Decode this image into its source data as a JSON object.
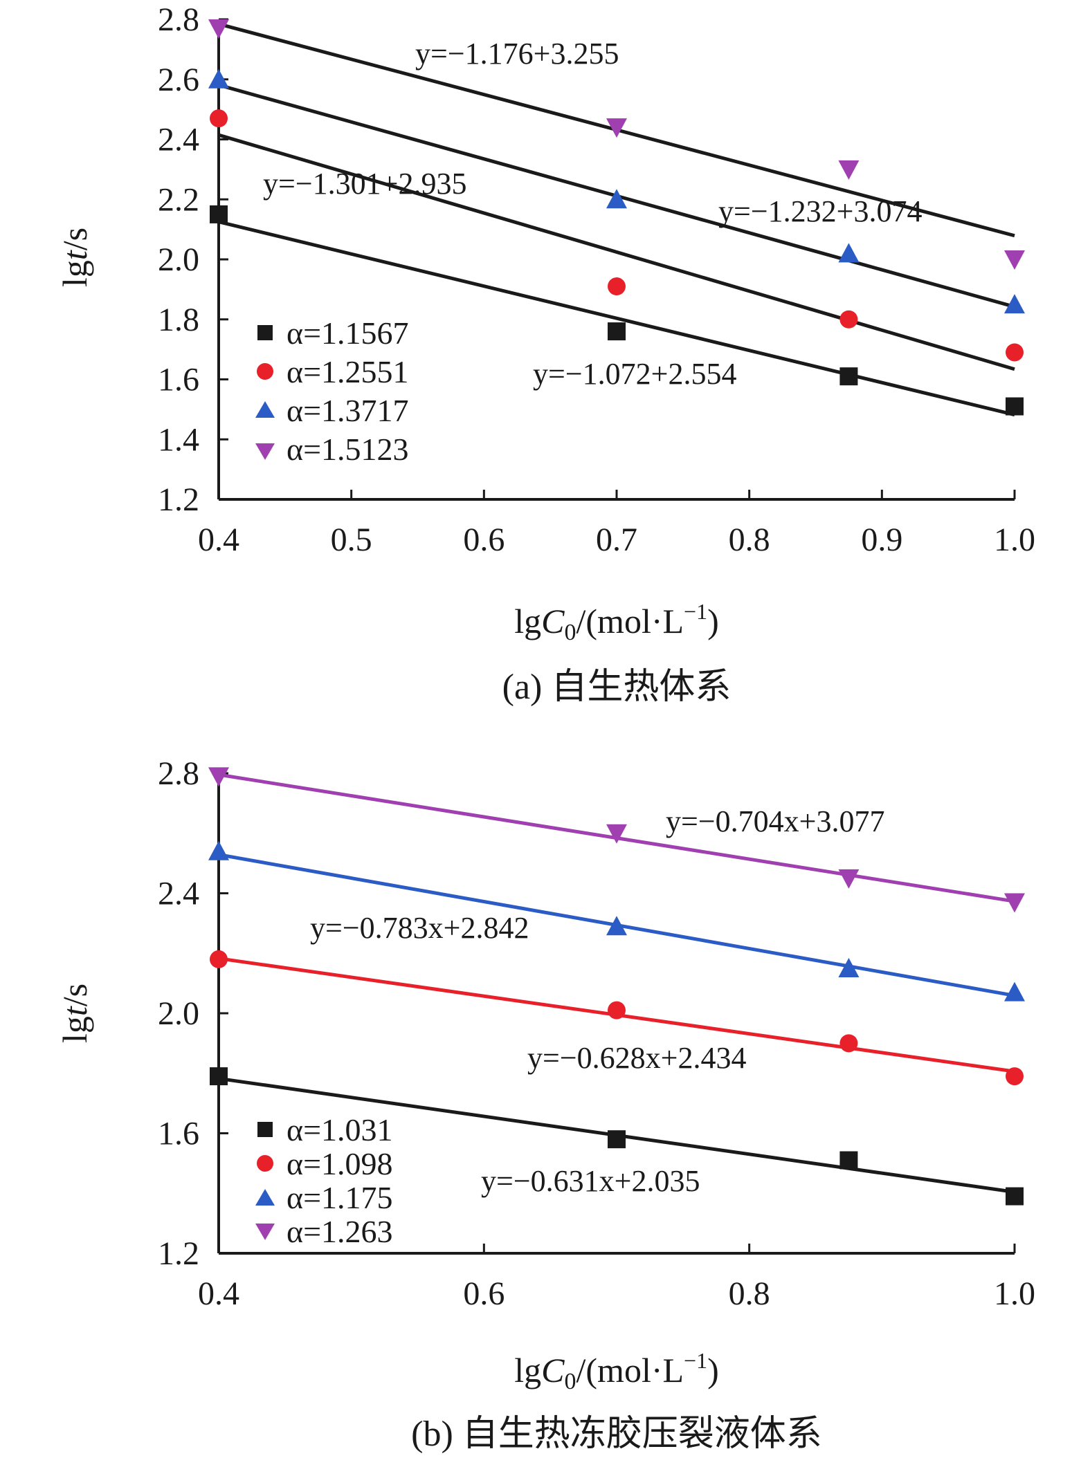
{
  "chart_data": [
    {
      "type": "scatter",
      "panel": "a",
      "caption": "(a) 自生热体系",
      "xlabel": "lgC0/(mol·L−1)",
      "ylabel": "lgt/s",
      "xlim": [
        0.4,
        1.0
      ],
      "ylim": [
        1.2,
        2.8
      ],
      "x_ticks": [
        "0.4",
        "0.5",
        "0.6",
        "0.7",
        "0.8",
        "0.9",
        "1.0"
      ],
      "y_ticks": [
        "1.2",
        "1.4",
        "1.6",
        "1.8",
        "2.0",
        "2.2",
        "2.4",
        "2.6",
        "2.8"
      ],
      "legend_position": "bottom-left",
      "grid": false,
      "x": [
        0.4,
        0.7,
        0.875,
        1.0
      ],
      "series": [
        {
          "name": "α=1.1567",
          "marker": "square",
          "color": "#1a1a1a",
          "line_color": "#1a1a1a",
          "values": [
            2.15,
            1.76,
            1.61,
            1.51
          ],
          "fit": {
            "slope": -1.072,
            "intercept": 2.554
          },
          "equation": "y=−1.072+2.554"
        },
        {
          "name": "α=1.2551",
          "marker": "circle",
          "color": "#e8202a",
          "line_color": "#1a1a1a",
          "values": [
            2.47,
            1.91,
            1.8,
            1.69
          ],
          "fit": {
            "slope": -1.301,
            "intercept": 2.935
          },
          "equation": "y=−1.301+2.935"
        },
        {
          "name": "α=1.3717",
          "marker": "triangle-up",
          "color": "#2b5cc6",
          "line_color": "#1a1a1a",
          "values": [
            2.6,
            2.2,
            2.02,
            1.85
          ],
          "fit": {
            "slope": -1.232,
            "intercept": 3.074
          },
          "equation": "y=−1.232+3.074"
        },
        {
          "name": "α=1.5123",
          "marker": "triangle-down",
          "color": "#a040b0",
          "line_color": "#1a1a1a",
          "values": [
            2.77,
            2.44,
            2.3,
            2.0
          ],
          "fit": {
            "slope": -1.176,
            "intercept": 3.255
          },
          "equation": "y=−1.176+3.255"
        }
      ]
    },
    {
      "type": "scatter",
      "panel": "b",
      "caption": "(b) 自生热冻胶压裂液体系",
      "xlabel": "lgC0/(mol·L−1)",
      "ylabel": "lgt/s",
      "xlim": [
        0.4,
        1.0
      ],
      "ylim": [
        1.2,
        2.8
      ],
      "x_ticks": [
        "0.4",
        "0.6",
        "0.8",
        "1.0"
      ],
      "y_ticks": [
        "1.2",
        "1.6",
        "2.0",
        "2.4",
        "2.8"
      ],
      "legend_position": "bottom-left",
      "grid": false,
      "x": [
        0.4,
        0.7,
        0.875,
        1.0
      ],
      "series": [
        {
          "name": "α=1.031",
          "marker": "square",
          "color": "#1a1a1a",
          "line_color": "#1a1a1a",
          "values": [
            1.79,
            1.58,
            1.51,
            1.39
          ],
          "fit": {
            "slope": -0.631,
            "intercept": 2.035
          },
          "equation": "y=−0.631x+2.035"
        },
        {
          "name": "α=1.098",
          "marker": "circle",
          "color": "#e8202a",
          "line_color": "#e8202a",
          "values": [
            2.18,
            2.01,
            1.9,
            1.79
          ],
          "fit": {
            "slope": -0.628,
            "intercept": 2.434
          },
          "equation": "y=−0.628x+2.434"
        },
        {
          "name": "α=1.175",
          "marker": "triangle-up",
          "color": "#2b5cc6",
          "line_color": "#2b5cc6",
          "values": [
            2.54,
            2.29,
            2.15,
            2.07
          ],
          "fit": {
            "slope": -0.783,
            "intercept": 2.842
          },
          "equation": "y=−0.783x+2.842"
        },
        {
          "name": "α=1.263",
          "marker": "triangle-down",
          "color": "#a040b0",
          "line_color": "#a040b0",
          "values": [
            2.79,
            2.6,
            2.45,
            2.37
          ],
          "fit": {
            "slope": -0.704,
            "intercept": 3.077
          },
          "equation": "y=−0.704x+3.077"
        }
      ]
    }
  ]
}
